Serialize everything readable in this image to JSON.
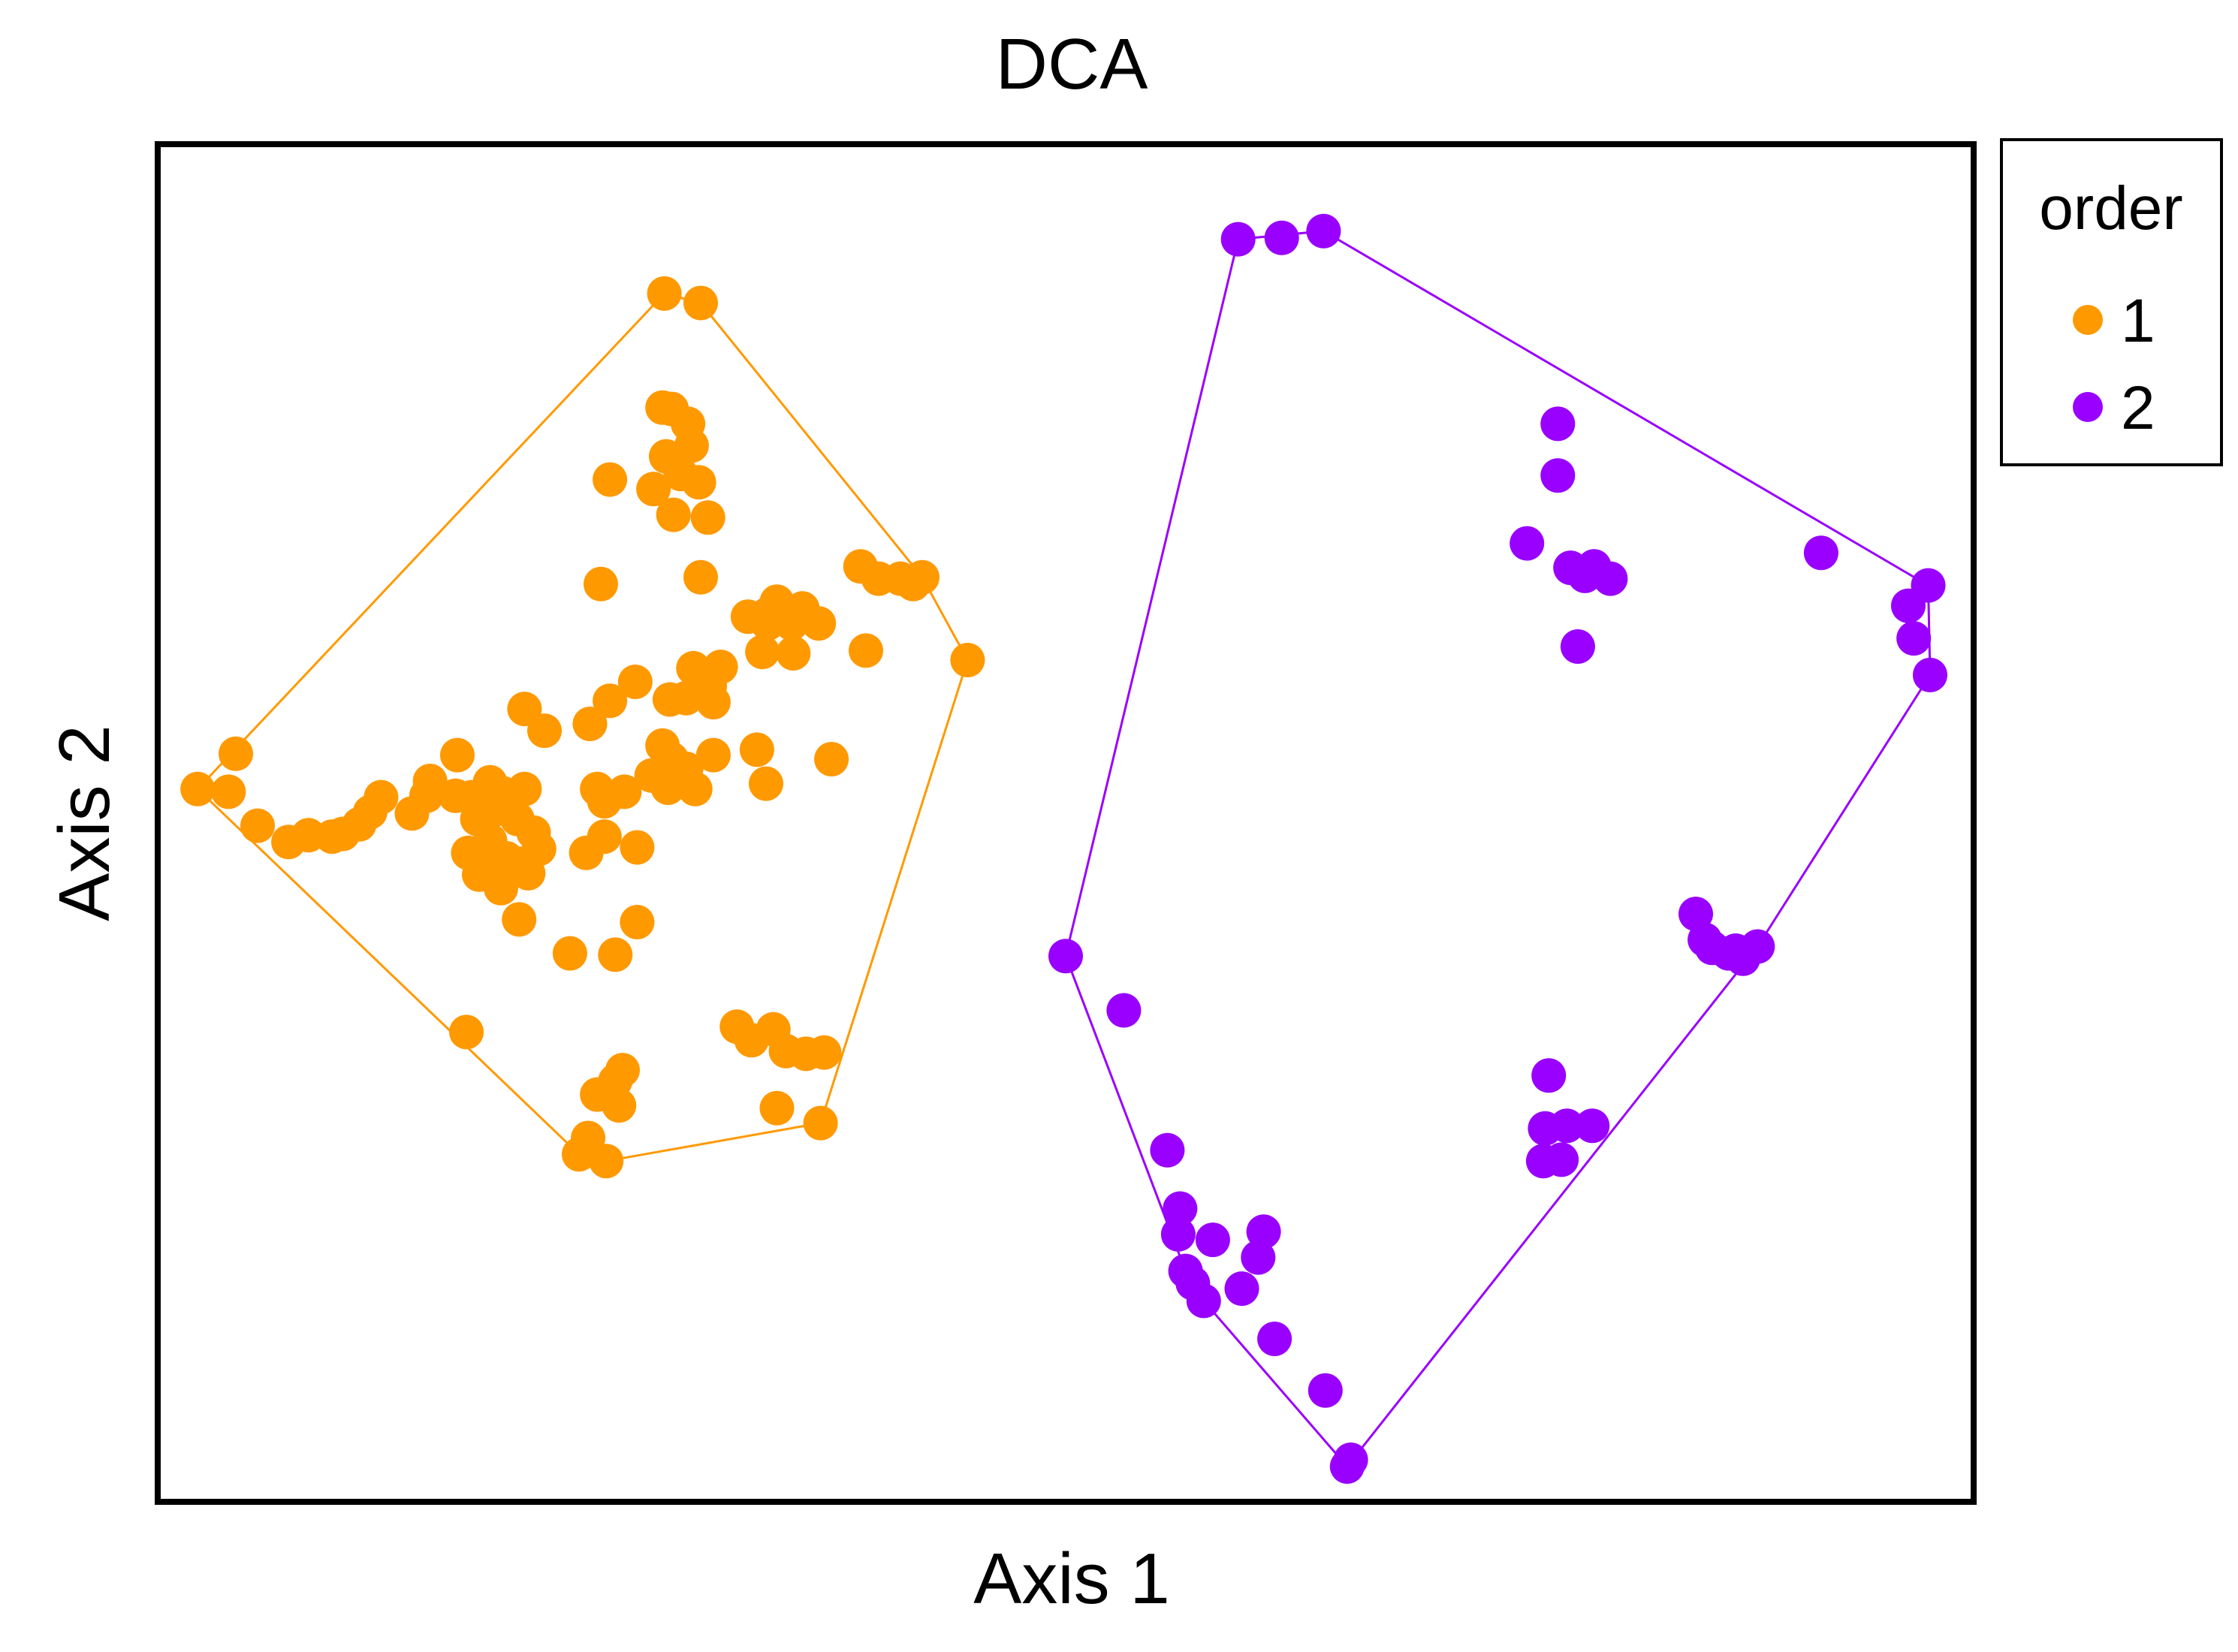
{
  "chart_data": {
    "type": "scatter",
    "title": "DCA",
    "xlabel": "Axis 1",
    "ylabel": "Axis 2",
    "xlim": [
      0,
      100
    ],
    "ylim": [
      0,
      100
    ],
    "x_ticks_shown": false,
    "y_ticks_shown": false,
    "grid": false,
    "legend": {
      "title": "order",
      "placement": "right-top-outside",
      "entries": [
        "1",
        "2"
      ]
    },
    "hull_outline": true,
    "series": [
      {
        "name": "1",
        "color": "#FF9900",
        "points": [
          [
            27.9,
            89.0
          ],
          [
            29.9,
            88.3
          ],
          [
            2.2,
            52.5
          ],
          [
            4.3,
            55.1
          ],
          [
            3.9,
            52.3
          ],
          [
            5.5,
            49.8
          ],
          [
            7.2,
            48.6
          ],
          [
            8.3,
            49.1
          ],
          [
            9.6,
            49.0
          ],
          [
            10.2,
            49.2
          ],
          [
            11.1,
            49.9
          ],
          [
            11.7,
            50.8
          ],
          [
            12.3,
            51.9
          ],
          [
            14.0,
            50.7
          ],
          [
            14.8,
            52.0
          ],
          [
            15.0,
            53.1
          ],
          [
            16.5,
            55.0
          ],
          [
            16.4,
            52.0
          ],
          [
            17.3,
            51.9
          ],
          [
            18.3,
            53.0
          ],
          [
            19.0,
            52.2
          ],
          [
            20.2,
            52.5
          ],
          [
            18.6,
            51.0
          ],
          [
            17.6,
            50.3
          ],
          [
            18.3,
            48.7
          ],
          [
            19.8,
            50.3
          ],
          [
            20.7,
            49.3
          ],
          [
            21.0,
            48.1
          ],
          [
            17.1,
            47.8
          ],
          [
            17.7,
            46.2
          ],
          [
            18.3,
            46.8
          ],
          [
            19.2,
            47.4
          ],
          [
            20.0,
            47.0
          ],
          [
            20.4,
            46.3
          ],
          [
            18.9,
            45.2
          ],
          [
            19.9,
            42.9
          ],
          [
            22.7,
            40.4
          ],
          [
            25.2,
            40.3
          ],
          [
            26.4,
            42.7
          ],
          [
            23.6,
            47.8
          ],
          [
            24.6,
            49.0
          ],
          [
            24.6,
            51.6
          ],
          [
            25.7,
            52.3
          ],
          [
            26.4,
            48.2
          ],
          [
            27.2,
            53.5
          ],
          [
            28.1,
            52.6
          ],
          [
            27.8,
            55.7
          ],
          [
            28.3,
            54.7
          ],
          [
            29.1,
            54.0
          ],
          [
            29.6,
            52.5
          ],
          [
            30.6,
            55.0
          ],
          [
            24.2,
            52.5
          ],
          [
            23.8,
            57.3
          ],
          [
            21.3,
            56.8
          ],
          [
            20.2,
            58.4
          ],
          [
            24.9,
            59.0
          ],
          [
            26.3,
            60.4
          ],
          [
            28.2,
            59.1
          ],
          [
            29.1,
            59.2
          ],
          [
            29.5,
            61.4
          ],
          [
            30.4,
            60.1
          ],
          [
            31.0,
            61.5
          ],
          [
            30.6,
            58.9
          ],
          [
            33.0,
            55.4
          ],
          [
            33.5,
            52.9
          ],
          [
            37.1,
            54.7
          ],
          [
            33.3,
            62.6
          ],
          [
            35.0,
            62.5
          ],
          [
            32.5,
            65.2
          ],
          [
            33.6,
            64.7
          ],
          [
            33.6,
            65.4
          ],
          [
            34.1,
            66.3
          ],
          [
            34.9,
            64.7
          ],
          [
            35.5,
            65.8
          ],
          [
            36.4,
            64.7
          ],
          [
            39.0,
            62.7
          ],
          [
            41.6,
            67.6
          ],
          [
            38.7,
            68.9
          ],
          [
            39.7,
            68.0
          ],
          [
            40.9,
            68.0
          ],
          [
            42.1,
            68.1
          ],
          [
            44.6,
            62.0
          ],
          [
            29.9,
            68.1
          ],
          [
            28.4,
            72.7
          ],
          [
            30.3,
            72.5
          ],
          [
            29.8,
            75.1
          ],
          [
            28.8,
            75.7
          ],
          [
            27.3,
            74.6
          ],
          [
            28.0,
            77.0
          ],
          [
            29.4,
            77.8
          ],
          [
            29.2,
            79.4
          ],
          [
            27.8,
            80.6
          ],
          [
            28.3,
            80.5
          ],
          [
            24.9,
            75.3
          ],
          [
            24.4,
            67.6
          ],
          [
            17.0,
            34.6
          ],
          [
            24.2,
            30.0
          ],
          [
            25.2,
            31.0
          ],
          [
            25.6,
            31.8
          ],
          [
            25.4,
            29.2
          ],
          [
            23.7,
            26.8
          ],
          [
            23.2,
            25.6
          ],
          [
            24.7,
            25.1
          ],
          [
            31.9,
            35.0
          ],
          [
            32.7,
            34.0
          ],
          [
            33.9,
            34.8
          ],
          [
            34.6,
            33.2
          ],
          [
            35.7,
            33.0
          ],
          [
            36.7,
            33.1
          ],
          [
            34.1,
            29.0
          ],
          [
            36.5,
            27.9
          ]
        ]
      },
      {
        "name": "2",
        "color": "#9900FF",
        "points": [
          [
            64.2,
            93.6
          ],
          [
            61.9,
            93.1
          ],
          [
            59.5,
            93.0
          ],
          [
            77.1,
            79.4
          ],
          [
            77.1,
            75.6
          ],
          [
            75.4,
            70.6
          ],
          [
            78.6,
            68.2
          ],
          [
            77.8,
            68.8
          ],
          [
            79.1,
            68.9
          ],
          [
            80.0,
            68.0
          ],
          [
            78.2,
            63.0
          ],
          [
            91.6,
            69.9
          ],
          [
            97.5,
            67.5
          ],
          [
            96.4,
            66.0
          ],
          [
            96.7,
            63.6
          ],
          [
            97.6,
            60.9
          ],
          [
            50.0,
            40.2
          ],
          [
            53.2,
            36.2
          ],
          [
            55.6,
            25.9
          ],
          [
            56.3,
            21.6
          ],
          [
            56.2,
            19.7
          ],
          [
            58.1,
            19.3
          ],
          [
            60.9,
            19.9
          ],
          [
            60.6,
            18.0
          ],
          [
            56.6,
            17.0
          ],
          [
            57.0,
            16.1
          ],
          [
            57.6,
            14.8
          ],
          [
            59.7,
            15.7
          ],
          [
            61.5,
            12.0
          ],
          [
            64.3,
            8.2
          ],
          [
            65.7,
            3.1
          ],
          [
            65.5,
            2.6
          ],
          [
            76.6,
            31.4
          ],
          [
            76.4,
            27.5
          ],
          [
            76.3,
            25.1
          ],
          [
            77.3,
            25.2
          ],
          [
            77.6,
            27.7
          ],
          [
            79.0,
            27.7
          ],
          [
            84.7,
            43.3
          ],
          [
            85.2,
            41.4
          ],
          [
            85.6,
            40.8
          ],
          [
            86.5,
            40.4
          ],
          [
            86.9,
            40.6
          ],
          [
            87.3,
            40.0
          ],
          [
            88.1,
            40.9
          ]
        ]
      }
    ]
  }
}
